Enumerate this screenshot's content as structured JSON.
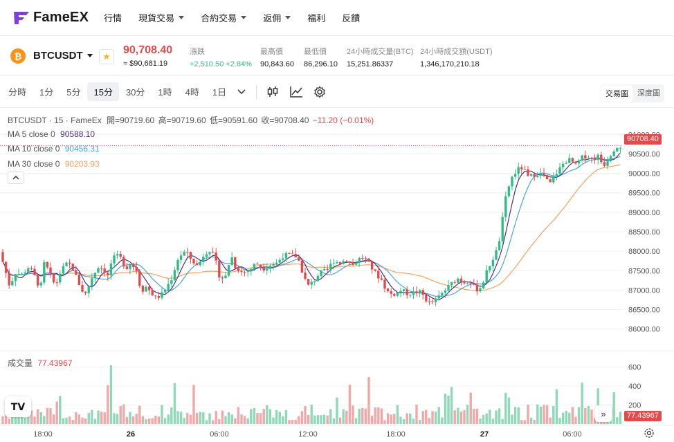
{
  "nav": {
    "logo": "FameEX",
    "items": [
      {
        "label": "行情",
        "dropdown": false
      },
      {
        "label": "現貨交易",
        "dropdown": true
      },
      {
        "label": "合約交易",
        "dropdown": true
      },
      {
        "label": "返佣",
        "dropdown": true
      },
      {
        "label": "福利",
        "dropdown": false
      },
      {
        "label": "反饋",
        "dropdown": false
      }
    ]
  },
  "ticker": {
    "coin_glyph": "₿",
    "symbol": "BTCUSDT",
    "price": "90,708.40",
    "price_usd": "≈ $90,681.19",
    "change_label": "漲跌",
    "change_value": "+2,510.50 +2.84%",
    "high_label": "最高價",
    "high_value": "90,843.60",
    "low_label": "最低價",
    "low_value": "86,296.10",
    "vol_btc_label": "24小時成交量(BTC)",
    "vol_btc_value": "15,251.86337",
    "vol_usdt_label": "24小時成交額(USDT)",
    "vol_usdt_value": "1,346,170,210.18",
    "up_color": "#2ebd85",
    "down_color": "#e34a4a"
  },
  "toolbar": {
    "timeframes": [
      "分時",
      "1分",
      "5分",
      "15分",
      "30分",
      "1時",
      "4時",
      "1日"
    ],
    "active_timeframe": "15分",
    "view_chart": "交易圖",
    "view_depth": "深度圖",
    "icons": [
      "chevron-down-icon",
      "candlestick-icon",
      "indicator-icon",
      "settings-icon"
    ]
  },
  "legend": {
    "title": "BTCUSDT · 15 · FameEx",
    "open": "開=90719.60",
    "high": "高=90719.60",
    "low": "低=90591.60",
    "close": "收=90708.40",
    "change": "−11.20 (−0.01%)",
    "ma5_label": "MA 5 close 0",
    "ma5_value": "90588.10",
    "ma10_label": "MA 10 close 0",
    "ma10_value": "90456.31",
    "ma30_label": "MA 30 close 0",
    "ma30_value": "90203.93",
    "volume_label": "成交量",
    "volume_value": "77.43967",
    "ma5_color": "#4a2d8c",
    "ma10_color": "#4aa3df",
    "ma30_color": "#f4a261"
  },
  "chart_data": {
    "type": "candlestick",
    "price_axis_ticks": [
      "91000.00",
      "90500.00",
      "90000.00",
      "89500.00",
      "89000.00",
      "88500.00",
      "88000.00",
      "87500.00",
      "87000.00",
      "86500.00",
      "86000.00"
    ],
    "volume_axis_ticks": [
      "600",
      "400",
      "200"
    ],
    "time_axis_ticks": [
      "18:00",
      "26",
      "06:00",
      "12:00",
      "18:00",
      "27",
      "06:00"
    ],
    "last_price_tag": "90708.40",
    "last_volume_tag": "77.43967",
    "ylim": [
      85800,
      91200
    ],
    "volume_ylim": [
      0,
      700
    ]
  }
}
